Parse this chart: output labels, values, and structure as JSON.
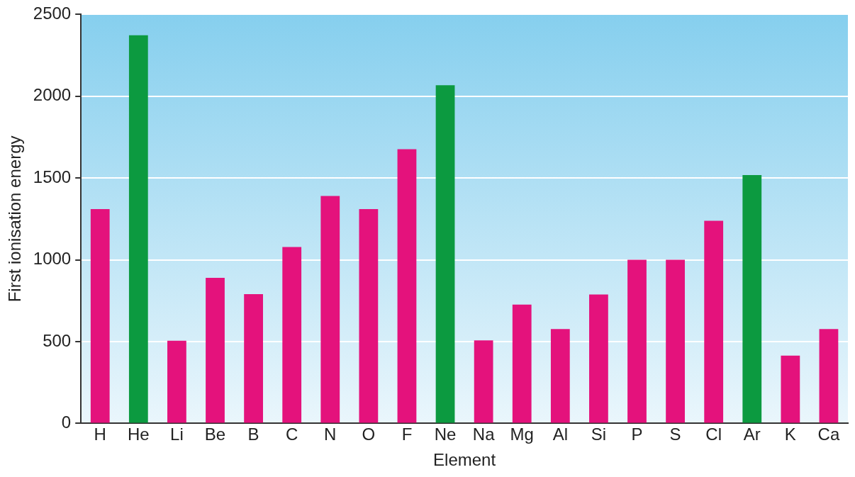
{
  "chart_data": {
    "type": "bar",
    "xlabel": "Element",
    "ylabel": "First ionisation energy",
    "categories": [
      "H",
      "He",
      "Li",
      "Be",
      "B",
      "C",
      "N",
      "O",
      "F",
      "Ne",
      "Na",
      "Mg",
      "Al",
      "Si",
      "P",
      "S",
      "Cl",
      "Ar",
      "K",
      "Ca"
    ],
    "values": [
      1310,
      2373,
      505,
      890,
      790,
      1078,
      1390,
      1310,
      1676,
      2067,
      508,
      726,
      577,
      788,
      1000,
      1000,
      1239,
      1518,
      414,
      577
    ],
    "colors": [
      "#e4127c",
      "#0c9a40",
      "#e4127c",
      "#e4127c",
      "#e4127c",
      "#e4127c",
      "#e4127c",
      "#e4127c",
      "#e4127c",
      "#0c9a40",
      "#e4127c",
      "#e4127c",
      "#e4127c",
      "#e4127c",
      "#e4127c",
      "#e4127c",
      "#e4127c",
      "#0c9a40",
      "#e4127c",
      "#e4127c"
    ],
    "ylim": [
      0,
      2500
    ],
    "yticks": [
      0,
      500,
      1000,
      1500,
      2000,
      2500
    ],
    "grid": "y",
    "legend": false
  }
}
